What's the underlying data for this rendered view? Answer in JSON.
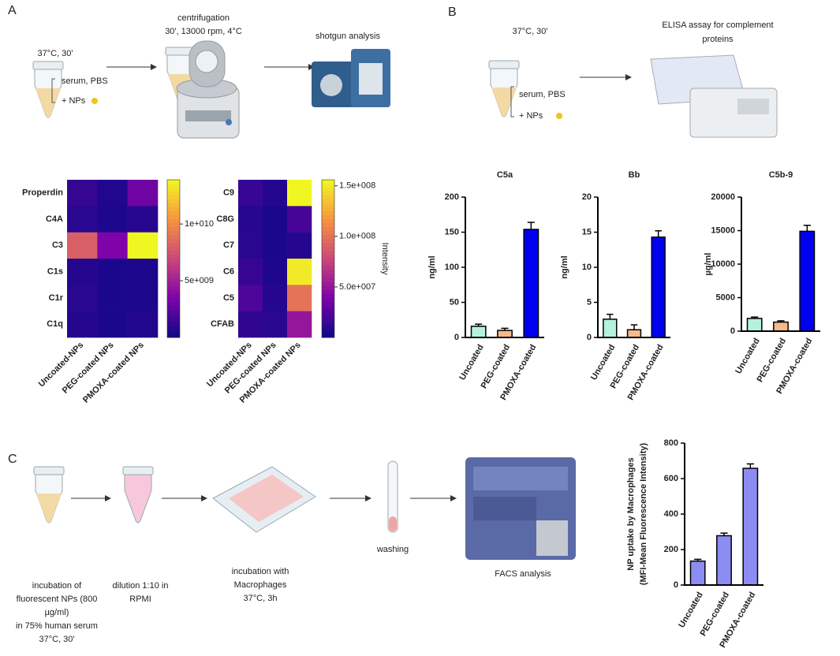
{
  "panels": {
    "a": "A",
    "b": "B",
    "c": "C"
  },
  "diagram_a": {
    "incubation": "37°C, 30'",
    "serum": "serum, PBS",
    "nps": "+ NPs",
    "centrifugation": "centrifugation",
    "centrifugation_conditions": "30', 13000 rpm, 4°C",
    "shotgun": "shotgun analysis"
  },
  "diagram_b": {
    "incubation": "37°C, 30'",
    "serum": "serum, PBS",
    "nps": "+ NPs",
    "elisa": [
      "ELISA assay for complement",
      "proteins"
    ]
  },
  "diagram_c": {
    "step1": [
      "incubation of",
      "fluorescent NPs (800",
      "µg/ml)",
      "in  75% human serum",
      "37°C, 30'"
    ],
    "step2": [
      "dilution 1:10 in",
      "RPMI"
    ],
    "step3": [
      "incubation with",
      "Macrophages",
      "37°C, 3h"
    ],
    "step4": "washing",
    "step5": "FACS analysis"
  },
  "chart_data": [
    {
      "type": "heatmap",
      "rows": [
        "Properdin",
        "C4A",
        "C3",
        "C1s",
        "C1r",
        "C1q"
      ],
      "columns": [
        "Uncoated-NPs",
        "PEG-coated NPs",
        "PMOXA-coated NPs"
      ],
      "values": [
        [
          1200000000,
          600000000,
          3000000000
        ],
        [
          900000000,
          500000000,
          800000000
        ],
        [
          8000000000,
          3500000000,
          13800000000
        ],
        [
          700000000,
          400000000,
          500000000
        ],
        [
          900000000,
          400000000,
          500000000
        ],
        [
          700000000,
          400000000,
          600000000
        ]
      ],
      "colormap": "plasma",
      "colorbar_lim": [
        0,
        13900000000
      ],
      "colorbar_ticks": [
        {
          "value": 5000000000,
          "label": "5e+009"
        },
        {
          "value": 10000000000,
          "label": "1e+010"
        }
      ]
    },
    {
      "type": "heatmap",
      "rows": [
        "C9",
        "C8G",
        "C7",
        "C6",
        "C5",
        "CFAB"
      ],
      "columns": [
        "Uncoated-NPs",
        "PEG-coated NPs",
        "PMOXA-coated NPs"
      ],
      "values": [
        [
          15000000,
          8000000,
          155000000
        ],
        [
          9000000,
          5000000,
          20000000
        ],
        [
          10000000,
          5000000,
          8000000
        ],
        [
          14000000,
          6000000,
          150000000
        ],
        [
          22000000,
          8000000,
          100000000
        ],
        [
          12000000,
          10000000,
          50000000
        ]
      ],
      "colormap": "plasma",
      "colorbar_lim": [
        0,
        156000000
      ],
      "colorbar_label": "Intensity",
      "colorbar_ticks": [
        {
          "value": 50000000,
          "label": "5.0e+007"
        },
        {
          "value": 100000000,
          "label": "1.0e+008"
        },
        {
          "value": 150000000,
          "label": "1.5e+008"
        }
      ]
    },
    {
      "type": "bar",
      "title": "C5a",
      "ylabel": [
        "ng/ml"
      ],
      "categories": [
        "Uncoated",
        "PEG-coated",
        "PMOXA-coated"
      ],
      "values": [
        16,
        10,
        154
      ],
      "errors": [
        3,
        3,
        10
      ],
      "colors": [
        "#b5f1df",
        "#f5b98a",
        "#0000f0"
      ],
      "ylim": [
        0,
        200
      ],
      "yticks": [
        0,
        50,
        100,
        150,
        200
      ]
    },
    {
      "type": "bar",
      "title": "Bb",
      "ylabel": [
        "ng/ml"
      ],
      "categories": [
        "Uncoated",
        "PEG-coated",
        "PMOXA-coated"
      ],
      "values": [
        2.6,
        1.1,
        14.3
      ],
      "errors": [
        0.7,
        0.7,
        0.9
      ],
      "colors": [
        "#b5f1df",
        "#f5b98a",
        "#0000f0"
      ],
      "ylim": [
        0,
        20
      ],
      "yticks": [
        0,
        5,
        10,
        15,
        20
      ]
    },
    {
      "type": "bar",
      "title": "C5b-9",
      "ylabel": [
        "µg/ml"
      ],
      "categories": [
        "Uncoated",
        "PEG-coated",
        "PMOXA-coated"
      ],
      "values": [
        1900,
        1350,
        14900
      ],
      "errors": [
        200,
        200,
        900
      ],
      "colors": [
        "#b5f1df",
        "#f5b98a",
        "#0000f0"
      ],
      "ylim": [
        0,
        20000
      ],
      "yticks": [
        0,
        5000,
        10000,
        15000,
        20000
      ]
    },
    {
      "type": "bar",
      "ylabel": [
        "NP uptake by Macrophages",
        "(MFI-Mean Fluorescence Intensity)"
      ],
      "categories": [
        "Uncoated",
        "PEG-coated",
        "PMOXA-coated"
      ],
      "values": [
        135,
        278,
        658
      ],
      "errors": [
        10,
        15,
        25
      ],
      "colors": [
        "#8c8cf2",
        "#8c8cf2",
        "#8c8cf2"
      ],
      "ylim": [
        0,
        800
      ],
      "yticks": [
        0,
        200,
        400,
        600,
        800
      ]
    }
  ]
}
